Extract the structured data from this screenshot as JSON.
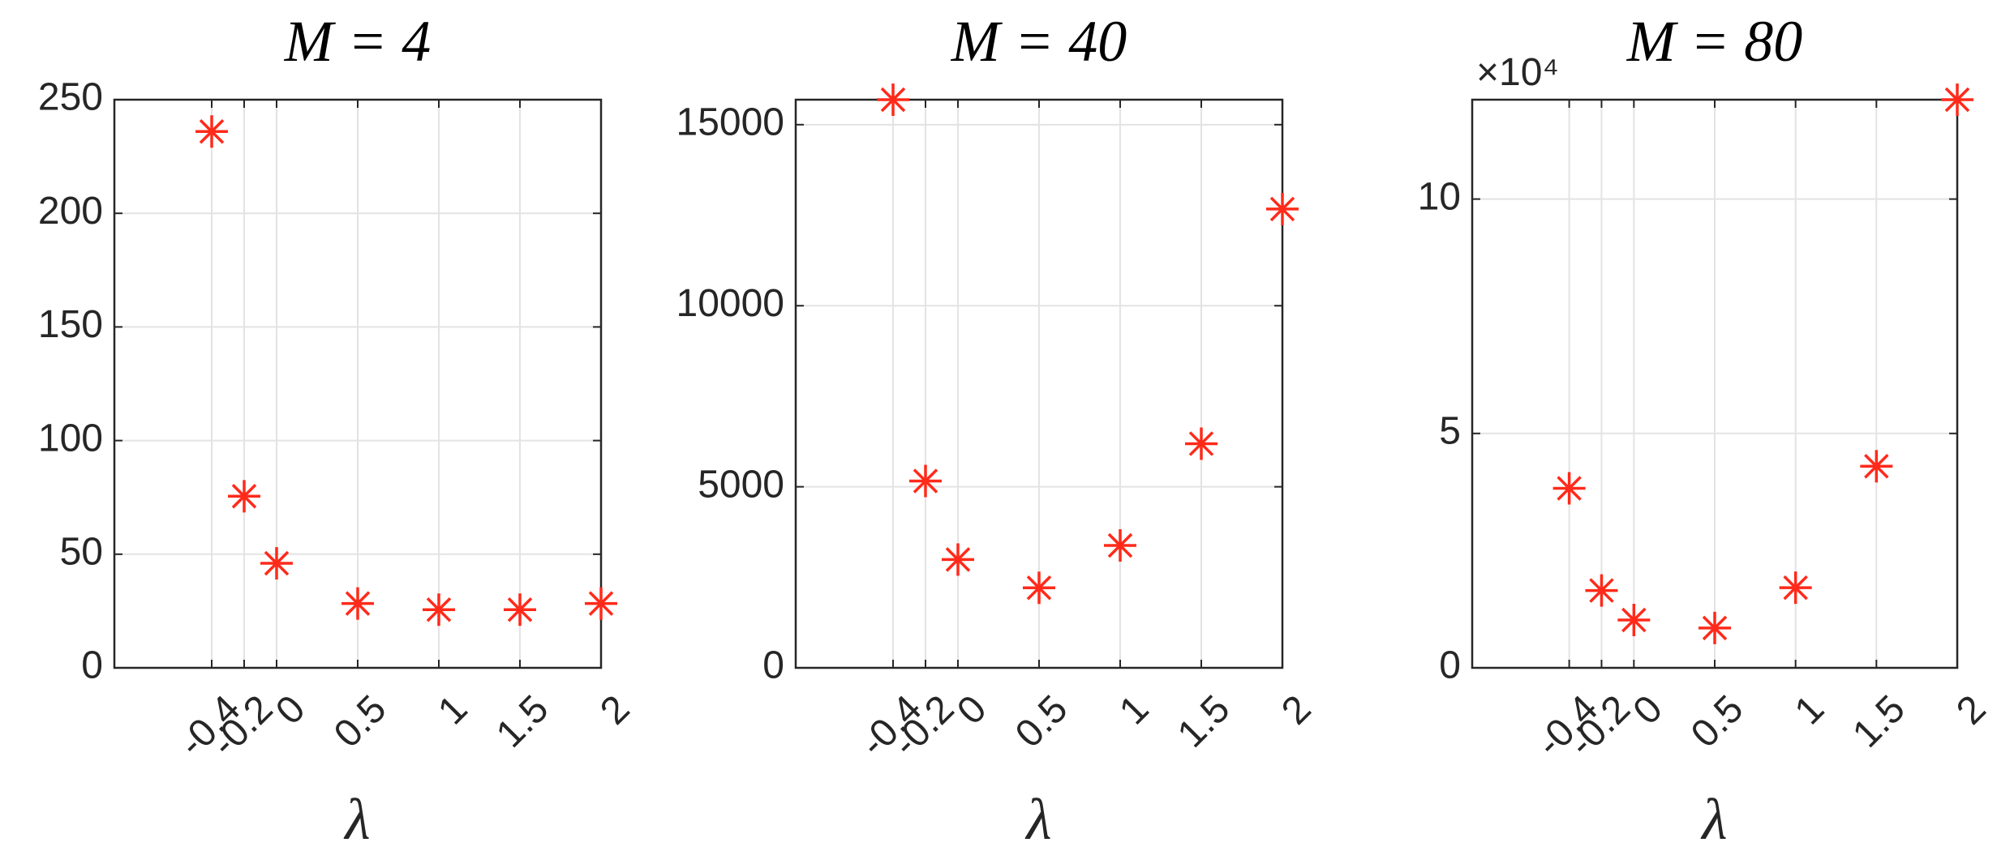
{
  "chart_data": [
    {
      "type": "scatter",
      "title": "M = 4",
      "xlabel": "λ",
      "marker": "asterisk",
      "color": "#ff2a1a",
      "grid": true,
      "x": [
        -0.4,
        -0.2,
        0,
        0.5,
        1,
        1.5,
        2
      ],
      "values": [
        236,
        75.5,
        46,
        28.3,
        25.6,
        25.6,
        28.3
      ],
      "xlim": [
        -1,
        2
      ],
      "xticks": [
        -0.4,
        -0.2,
        0,
        0.5,
        1,
        1.5,
        2
      ],
      "ylim": [
        0,
        250
      ],
      "yticks": [
        0,
        50,
        100,
        150,
        200,
        250
      ]
    },
    {
      "type": "scatter",
      "title": "M = 40",
      "xlabel": "λ",
      "marker": "asterisk",
      "color": "#ff2a1a",
      "grid": true,
      "x": [
        -0.4,
        -0.2,
        0,
        0.5,
        1,
        1.5,
        2
      ],
      "values": [
        15690,
        5160,
        2990,
        2210,
        3380,
        6190,
        12670
      ],
      "xlim": [
        -1,
        2
      ],
      "xticks": [
        -0.4,
        -0.2,
        0,
        0.5,
        1,
        1.5,
        2
      ],
      "ylim": [
        0,
        15690
      ],
      "yticks": [
        0,
        5000,
        10000,
        15000
      ]
    },
    {
      "type": "scatter",
      "title": "M = 80",
      "xlabel": "λ",
      "marker": "asterisk",
      "color": "#ff2a1a",
      "grid": true,
      "y_exponent_label": "×10⁴",
      "x": [
        -0.4,
        -0.2,
        0,
        0.5,
        1,
        1.5,
        2
      ],
      "values": [
        38300,
        16500,
        10200,
        8500,
        17100,
        43000,
        121200
      ],
      "xlim": [
        -1,
        2
      ],
      "xticks": [
        -0.4,
        -0.2,
        0,
        0.5,
        1,
        1.5,
        2
      ],
      "ylim": [
        0,
        121200
      ],
      "yticks": [
        {
          "value": 0,
          "label": "0"
        },
        {
          "value": 50000,
          "label": "5"
        },
        {
          "value": 100000,
          "label": "10"
        }
      ]
    }
  ]
}
